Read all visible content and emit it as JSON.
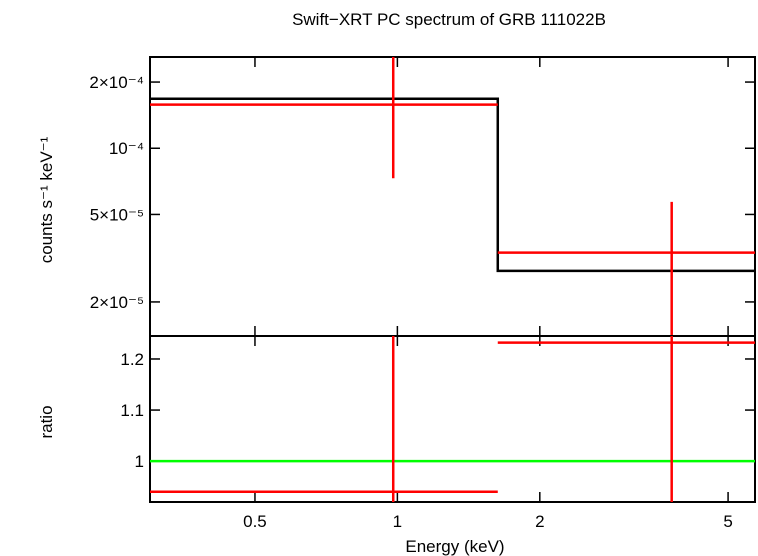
{
  "chart_data": {
    "type": "scatter",
    "title": "Swift−XRT PC spectrum of GRB 111022B",
    "xlabel": "Energy (keV)",
    "x_scale": "log",
    "xlim": [
      0.3,
      5.7
    ],
    "x_ticks": [
      {
        "value": 0.5,
        "label": "0.5"
      },
      {
        "value": 1,
        "label": "1"
      },
      {
        "value": 2,
        "label": "2"
      },
      {
        "value": 5,
        "label": "5"
      }
    ],
    "panels": [
      {
        "name": "spectrum",
        "ylabel": "counts s⁻¹ keV⁻¹",
        "y_scale": "log",
        "ylim": [
          1.4e-05,
          0.00026
        ],
        "y_ticks": [
          {
            "value": 2e-05,
            "label": "2×10⁻⁵"
          },
          {
            "value": 5e-05,
            "label": "5×10⁻⁵"
          },
          {
            "value": 0.0001,
            "label": "10⁻⁴"
          },
          {
            "value": 0.0002,
            "label": "2×10⁻⁴"
          }
        ],
        "model": [
          {
            "xlo": 0.3,
            "xhi": 1.63,
            "y": 0.000168
          },
          {
            "xlo": 1.63,
            "xhi": 5.7,
            "y": 2.77e-05
          }
        ],
        "data": [
          {
            "x": 0.98,
            "xlo": 0.3,
            "xhi": 1.63,
            "y": 0.000158,
            "ylo": 7.3e-05,
            "yhi": 0.00026
          },
          {
            "x": 3.8,
            "xlo": 1.63,
            "xhi": 5.7,
            "y": 3.35e-05,
            "ylo": 1.4e-05,
            "yhi": 5.7e-05
          }
        ]
      },
      {
        "name": "ratio",
        "ylabel": "ratio",
        "y_scale": "linear",
        "ylim": [
          0.92,
          1.245
        ],
        "y_ticks": [
          {
            "value": 1,
            "label": "1"
          },
          {
            "value": 1.1,
            "label": "1.1"
          },
          {
            "value": 1.2,
            "label": "1.2"
          }
        ],
        "reference": 1,
        "data": [
          {
            "x": 0.98,
            "xlo": 0.3,
            "xhi": 1.63,
            "y": 0.94,
            "ylo": 0.92,
            "yhi": 1.245
          },
          {
            "x": 3.8,
            "xlo": 1.63,
            "xhi": 5.7,
            "y": 1.232,
            "ylo": 0.92,
            "yhi": 1.245
          }
        ]
      }
    ],
    "colors": {
      "data": "#ff0000",
      "model": "#000000",
      "reference": "#00ff00"
    }
  }
}
